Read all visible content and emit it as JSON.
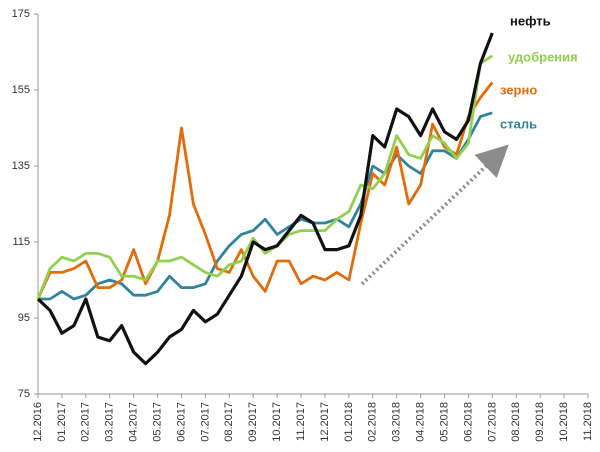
{
  "chart_data": {
    "type": "line",
    "categories": [
      "12.2016",
      null,
      "01.2017",
      null,
      "02.2017",
      null,
      "03.2017",
      null,
      "04.2017",
      null,
      "05.2017",
      null,
      "06.2017",
      null,
      "07.2017",
      null,
      "08.2017",
      null,
      "09.2017",
      null,
      "10.2017",
      null,
      "11.2017",
      null,
      "12.2017",
      null,
      "01.2018",
      null,
      "02.2018",
      null,
      "03.2018",
      null,
      "04.2018",
      null,
      "05.2018",
      null,
      "06.2018",
      null,
      "07.2018",
      null,
      "08.2018",
      null,
      "09.2018",
      null,
      "10.2018",
      null,
      "11.2018"
    ],
    "series": [
      {
        "name": "нефть",
        "color": "#111111",
        "values": [
          100,
          97,
          91,
          93,
          100,
          90,
          89,
          93,
          86,
          83,
          86,
          90,
          92,
          97,
          94,
          96,
          101,
          106,
          115,
          113,
          114,
          118,
          122,
          120,
          113,
          113,
          114,
          122,
          143,
          140,
          150,
          148,
          143,
          150,
          144,
          142,
          147,
          162,
          170,
          null,
          null,
          null,
          null,
          null,
          null,
          null,
          null
        ]
      },
      {
        "name": "удобрения",
        "color": "#92d050",
        "values": [
          100,
          108,
          111,
          110,
          112,
          112,
          111,
          106,
          106,
          105,
          110,
          110,
          111,
          109,
          107,
          106,
          109,
          110,
          116,
          112,
          114,
          117,
          118,
          118,
          118,
          121,
          123,
          130,
          129,
          133,
          143,
          138,
          137,
          143,
          141,
          137,
          141,
          162,
          164,
          null,
          null,
          null,
          null,
          null,
          null,
          null,
          null
        ]
      },
      {
        "name": "зерно",
        "color": "#e36c0a",
        "values": [
          100,
          107,
          107,
          108,
          110,
          103,
          103,
          105,
          113,
          104,
          110,
          122,
          145,
          125,
          117,
          108,
          107,
          113,
          106,
          102,
          110,
          110,
          104,
          106,
          105,
          107,
          105,
          120,
          133,
          130,
          140,
          125,
          130,
          146,
          140,
          138,
          148,
          153,
          157,
          null,
          null,
          null,
          null,
          null,
          null,
          null,
          null
        ]
      },
      {
        "name": "сталь",
        "color": "#31849b",
        "values": [
          100,
          100,
          102,
          100,
          101,
          104,
          105,
          104,
          101,
          101,
          102,
          106,
          103,
          103,
          104,
          110,
          114,
          117,
          118,
          121,
          117,
          119,
          121,
          120,
          120,
          121,
          119,
          125,
          135,
          133,
          138,
          135,
          133,
          139,
          139,
          137,
          142,
          148,
          149,
          null,
          null,
          null,
          null,
          null,
          null,
          null,
          null
        ]
      }
    ],
    "ylim": [
      75,
      175
    ],
    "yticks": [
      75,
      95,
      115,
      135,
      155,
      175
    ],
    "grid": false
  }
}
